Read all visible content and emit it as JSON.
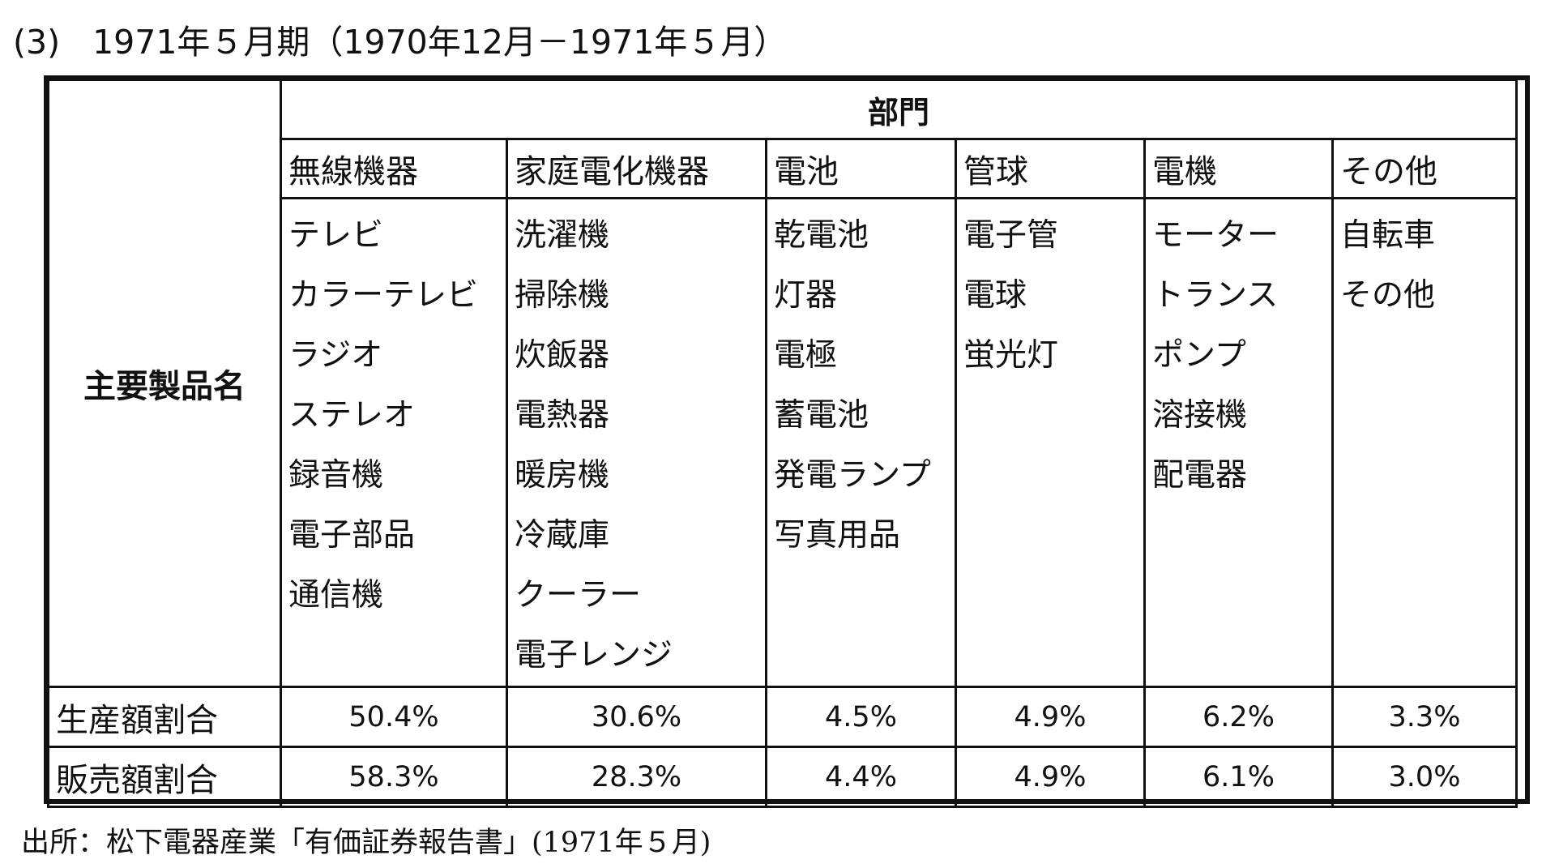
{
  "heading": {
    "number": "(3)",
    "text": "1971年５月期（1970年12月－1971年５月）"
  },
  "table": {
    "department_header": "部門",
    "row_label_main": "主要製品名",
    "departments": [
      {
        "name": "無線機器",
        "products": [
          "テレビ",
          "カラーテレビ",
          "ラジオ",
          "ステレオ",
          "録音機",
          "電子部品",
          "通信機"
        ]
      },
      {
        "name": "家庭電化機器",
        "products": [
          "洗濯機",
          "掃除機",
          "炊飯器",
          "電熱器",
          "暖房機",
          "冷蔵庫",
          "クーラー",
          "電子レンジ"
        ]
      },
      {
        "name": "電池",
        "products": [
          "乾電池",
          "灯器",
          "電極",
          "蓄電池",
          "発電ランプ",
          "写真用品"
        ]
      },
      {
        "name": "管球",
        "products": [
          "電子管",
          "電球",
          "蛍光灯"
        ]
      },
      {
        "name": "電機",
        "products": [
          "モーター",
          "トランス",
          "ポンプ",
          "溶接機",
          "配電器"
        ]
      },
      {
        "name": "その他",
        "products": [
          "自転車",
          "その他"
        ]
      }
    ],
    "production_share": {
      "label": "生産額割合",
      "values": [
        "50.4%",
        "30.6%",
        "4.5%",
        "4.9%",
        "6.2%",
        "3.3%"
      ]
    },
    "sales_share": {
      "label": "販売額割合",
      "values": [
        "58.3%",
        "28.3%",
        "4.4%",
        "4.9%",
        "6.1%",
        "3.0%"
      ]
    }
  },
  "source": "出所：松下電器産業「有価証券報告書」(1971年５月)"
}
